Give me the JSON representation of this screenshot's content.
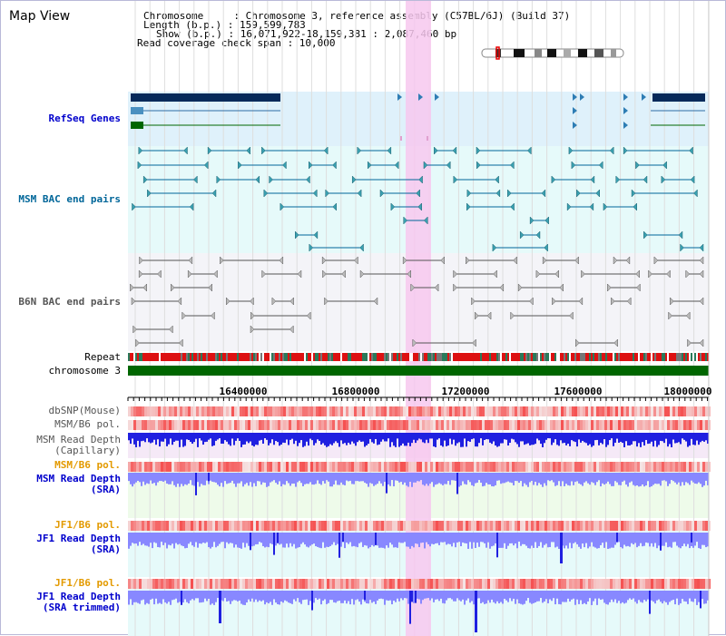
{
  "header": {
    "title": "Map View",
    "info_lines": [
      "Chromosome     : Chromosome 3, reference assembly (C57BL/6J) (Build 37)",
      "Length (b.p.) : 159,599,783",
      "Show (b.p.) : 16,071,922-18,159,381 : 2,087,460 bp",
      "Read coverage check span : 10,000"
    ]
  },
  "tracks": {
    "refseq": "RefSeq Genes",
    "msm_bac": "MSM BAC end pairs",
    "b6n_bac": "B6N BAC end pairs",
    "repeat": "Repeat",
    "chromosome": "chromosome 3",
    "dbsnp": "dbSNP(Mouse)",
    "msm_b6_pol_1": "MSM/B6 pol.",
    "msm_depth_cap_1": "MSM Read Depth",
    "msm_depth_cap_2": "(Capillary)",
    "msm_b6_pol_2": "MSM/B6 pol.",
    "msm_depth_sra_1": "MSM Read Depth",
    "msm_depth_sra_2": "(SRA)",
    "jf1_b6_pol_1": "JF1/B6 pol.",
    "jf1_depth_sra_1": "JF1 Read Depth",
    "jf1_depth_sra_2": "(SRA)",
    "jf1_b6_pol_2": "JF1/B6 pol.",
    "jf1_depth_trim_1": "JF1 Read Depth",
    "jf1_depth_trim_2": "(SRA trimmed)"
  },
  "axis": {
    "ticks": [
      "16400000",
      "16800000",
      "17200000",
      "17600000",
      "18000000"
    ]
  },
  "colors": {
    "refseq_link": "#0000cc",
    "msm_link": "#006699",
    "b6n_link": "#555555",
    "orange": "#e39a00",
    "depth_blue": "#2020e0",
    "depth_light": "#8888ff",
    "chromosome_green": "#006600",
    "highlight_pink": "#f7c8ee"
  }
}
